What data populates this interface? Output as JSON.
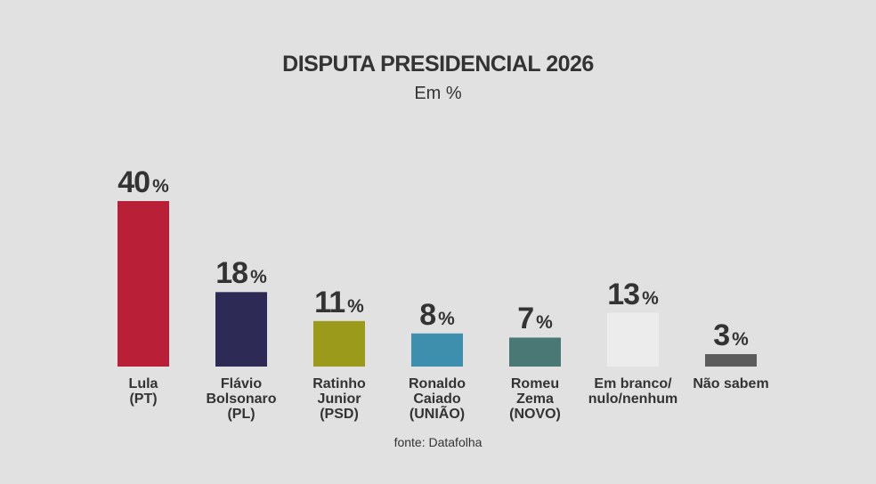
{
  "chart_data": {
    "type": "bar",
    "title": "DISPUTA PRESIDENCIAL 2026",
    "subtitle": "Em %",
    "source": "fonte: Datafolha",
    "value_suffix": "%",
    "ylim": [
      0,
      40
    ],
    "grid": false,
    "legend": "none",
    "categories": [
      [
        "Lula",
        "(PT)"
      ],
      [
        "Flávio",
        "Bolsonaro",
        "(PL)"
      ],
      [
        "Ratinho",
        "Junior",
        "(PSD)"
      ],
      [
        "Ronaldo",
        "Caiado",
        "(UNIÃO)"
      ],
      [
        "Romeu",
        "Zema",
        "(NOVO)"
      ],
      [
        "Em branco/",
        "nulo/nenhum"
      ],
      [
        "Não sabem"
      ]
    ],
    "values": [
      40,
      18,
      11,
      8,
      7,
      13,
      3
    ],
    "colors": [
      "#b91f36",
      "#2d2b55",
      "#9c9a1a",
      "#3e8fae",
      "#4a7875",
      "#ececec",
      "#5c5c5c"
    ]
  }
}
